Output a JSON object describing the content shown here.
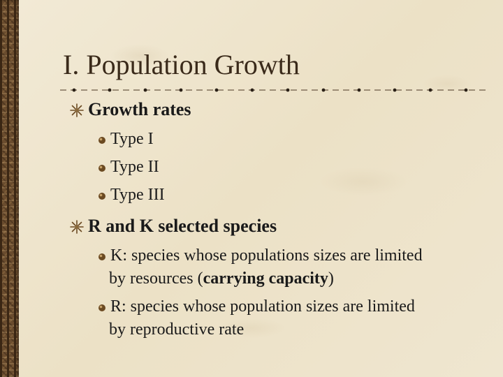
{
  "slide": {
    "title": "I. Population Growth",
    "points": [
      {
        "text": "Growth rates",
        "subpoints": [
          "Type I",
          "Type II",
          "Type III"
        ]
      },
      {
        "text": "R and K selected species",
        "subpoints": [
          {
            "line1": "K: species whose populations sizes are limited",
            "line2_pre": "by resources (",
            "line2_bold": "carrying capacity",
            "line2_post": ")"
          },
          {
            "line1": "R: species whose population sizes are limited",
            "line2": "by reproductive rate"
          }
        ]
      }
    ]
  },
  "colors": {
    "background": "#efe6d0",
    "sidebar": "#6a4c2e",
    "title": "#3a2a1a",
    "bullet": "#6b4a22"
  },
  "icons": {
    "divider": "dotted-divider-icon",
    "level1_bullet": "star-bullet-icon",
    "level2_bullet": "dot-bullet-icon"
  }
}
